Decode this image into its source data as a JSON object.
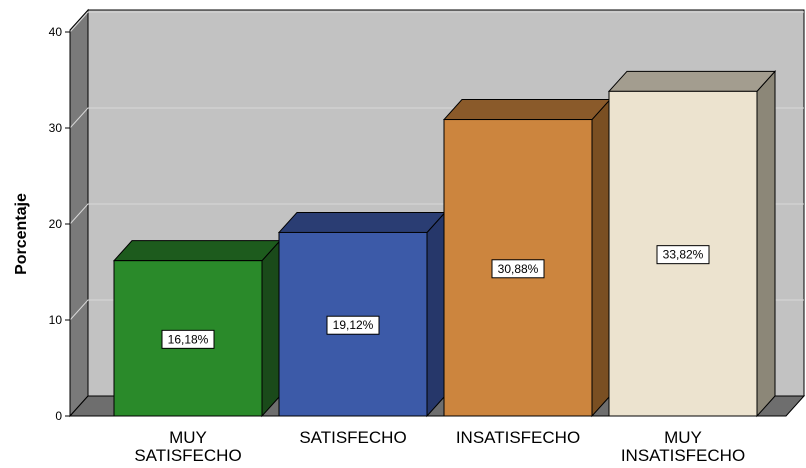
{
  "chart_data": {
    "type": "bar",
    "style": "3d",
    "categories": [
      [
        "MUY",
        "SATISFECHO"
      ],
      [
        "SATISFECHO"
      ],
      [
        "INSATISFECHO"
      ],
      [
        "MUY",
        "INSATISFECHO"
      ]
    ],
    "values": [
      16.18,
      19.12,
      30.88,
      33.82
    ],
    "data_labels": [
      "16,18%",
      "19,12%",
      "30,88%",
      "33,82%"
    ],
    "ylabel": "Porcentaje",
    "xlabel": "",
    "ylim": [
      0,
      40
    ],
    "yticks": [
      "0",
      "10",
      "20",
      "30",
      "40"
    ],
    "grid": true,
    "colors": {
      "bars": [
        "#2a8a2a",
        "#3c5aa8",
        "#cc853e",
        "#ece3cf"
      ],
      "bar_tops": [
        "#1d5b1d",
        "#2a3d73",
        "#8a5a2a",
        "#a39d8f"
      ],
      "bar_sides": [
        "#1a4a1a",
        "#26376a",
        "#7a4f22",
        "#8c8778"
      ],
      "plot_back": "#c2c2c2",
      "plot_left_wall": "#7a7a7a",
      "floor": "#6e6e6e",
      "gridline": "#d8d8d8"
    }
  }
}
